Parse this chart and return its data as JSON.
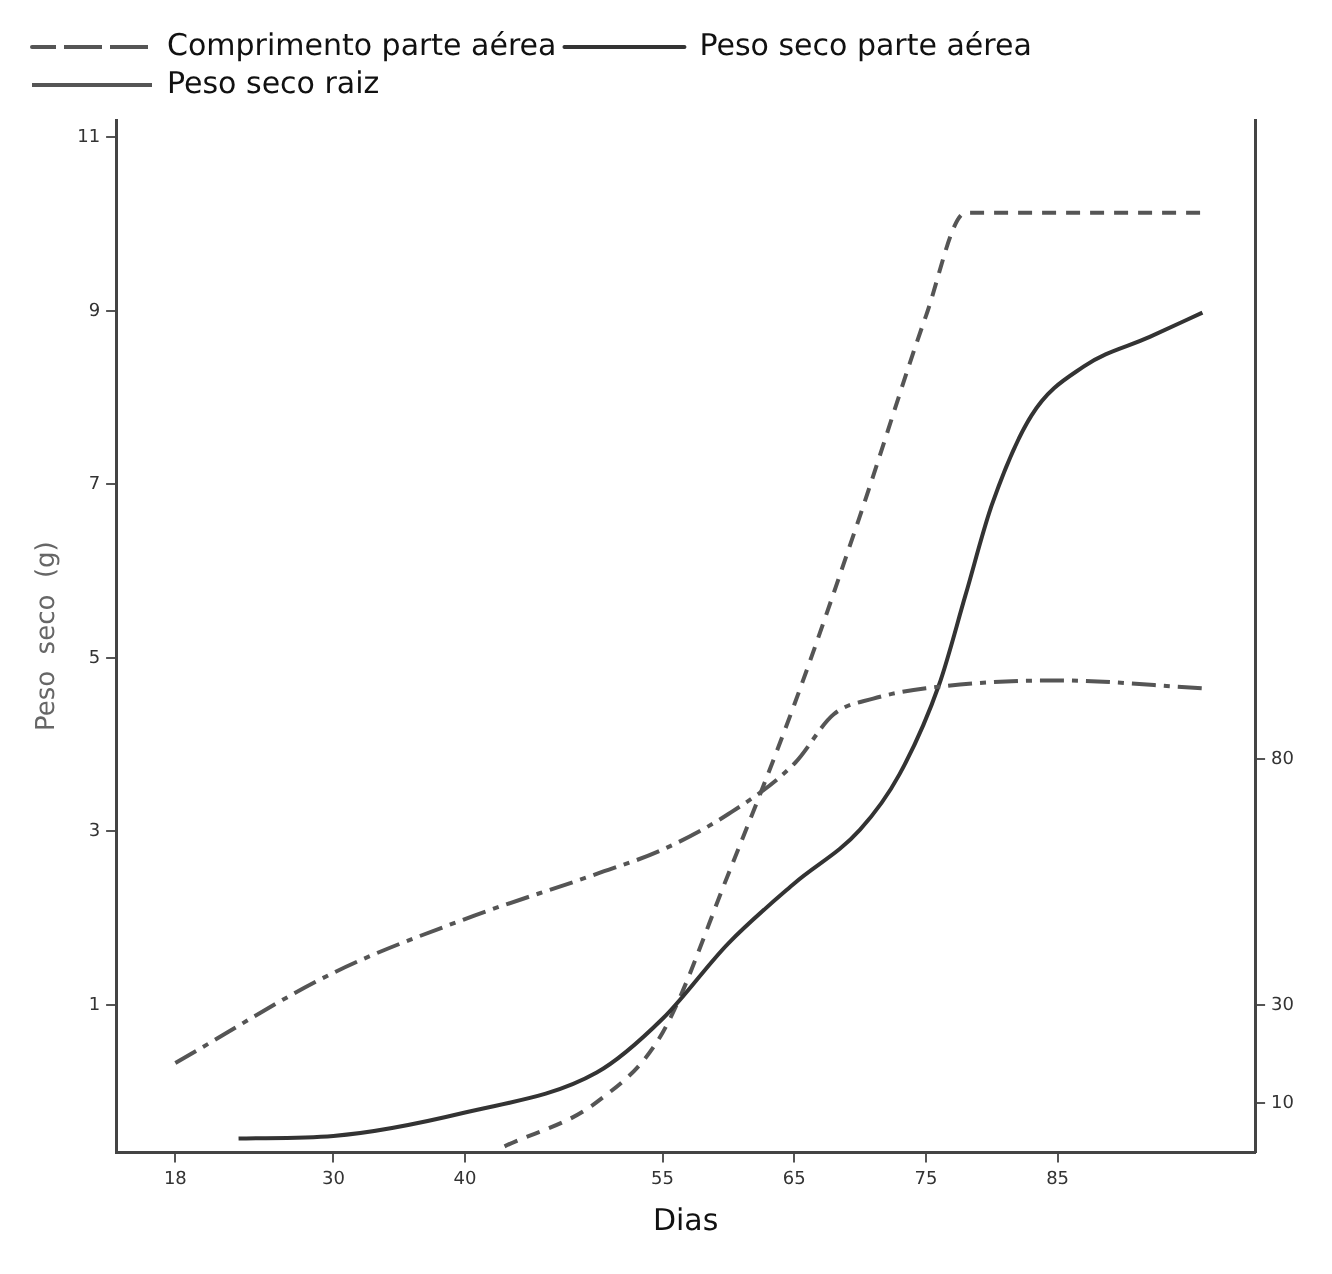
{
  "chart_data": {
    "type": "line",
    "xlabel": "Dias",
    "ylabel": "Peso  seco  (g)",
    "xlim": [
      13.5,
      100
    ],
    "xticks": [
      18,
      30,
      40,
      55,
      65,
      75,
      85
    ],
    "ylim": [
      -0.7,
      11.2
    ],
    "yticks": [
      1,
      3,
      5,
      7,
      9,
      11
    ],
    "y2lim": [
      0,
      210
    ],
    "y2ticks": [
      10,
      30,
      80
    ],
    "grid": false,
    "legend": "top left",
    "marker": "none",
    "series": [
      {
        "name": "Comprimento parte aérea",
        "color": "#555555",
        "line_style": "dashdot",
        "x": [
          18,
          30,
          40,
          50,
          55,
          60,
          65,
          68,
          71,
          75,
          85,
          96
        ],
        "values": [
          0.33,
          1.37,
          1.99,
          2.51,
          2.79,
          3.2,
          3.78,
          4.35,
          4.53,
          4.65,
          4.74,
          4.65
        ]
      },
      {
        "name": "Peso seco parte aérea",
        "color": "#333333",
        "line_style": "solid",
        "x": [
          22.8,
          30,
          40,
          50,
          55,
          60,
          65,
          70,
          73,
          76,
          78,
          80,
          83,
          87,
          92,
          96
        ],
        "values": [
          -0.54,
          -0.51,
          -0.24,
          0.22,
          0.84,
          1.71,
          2.4,
          3.02,
          3.66,
          4.69,
          5.72,
          6.76,
          7.79,
          8.36,
          8.7,
          8.98
        ]
      },
      {
        "name": "Peso seco raiz",
        "color": "#555555",
        "line_style": "dashed",
        "x": [
          43,
          50,
          55,
          60,
          65,
          70,
          75,
          78,
          85,
          96
        ],
        "values": [
          -0.63,
          -0.12,
          0.68,
          2.51,
          4.46,
          6.64,
          8.94,
          10.13,
          10.13,
          10.13
        ]
      }
    ]
  }
}
